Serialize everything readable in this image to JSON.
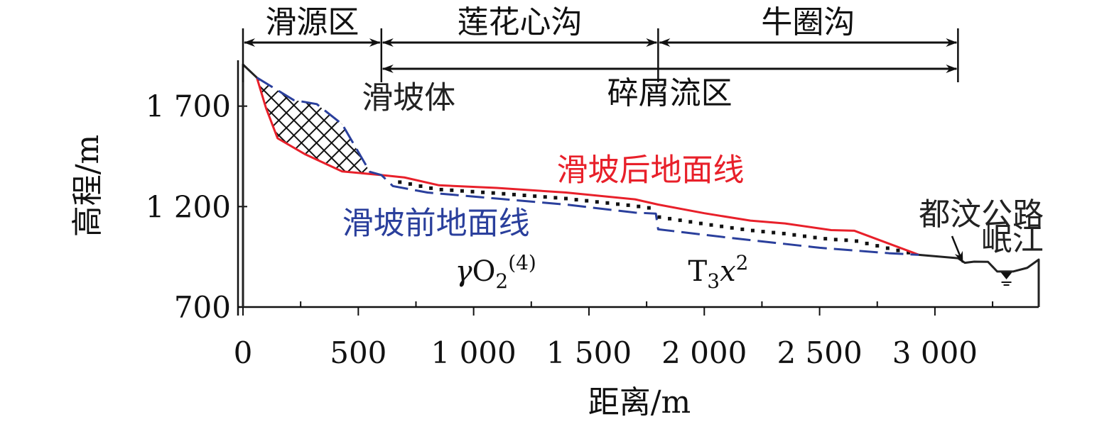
{
  "chart_data": {
    "type": "line",
    "xlabel": "距离/m",
    "ylabel": "高程/m",
    "xlim": [
      0,
      3450
    ],
    "ylim": [
      700,
      1900
    ],
    "x_ticks": [
      {
        "value": 0,
        "label": "0"
      },
      {
        "value": 500,
        "label": "500"
      },
      {
        "value": 1000,
        "label": "1 000"
      },
      {
        "value": 1500,
        "label": "1 500"
      },
      {
        "value": 2000,
        "label": "2 000"
      },
      {
        "value": 2500,
        "label": "2 500"
      },
      {
        "value": 3000,
        "label": "3 000"
      }
    ],
    "x_minor_ticks": [
      250,
      750,
      1250,
      1750,
      2250,
      2750,
      3250
    ],
    "y_ticks": [
      {
        "value": 700,
        "label": "700"
      },
      {
        "value": 1200,
        "label": "1 200"
      },
      {
        "value": 1700,
        "label": "1 700"
      }
    ],
    "zones": [
      {
        "label": "滑源区",
        "from": 0,
        "to": 600,
        "row": 1
      },
      {
        "label": "莲花心沟",
        "from": 600,
        "to": 1800,
        "row": 1
      },
      {
        "label": "牛圈沟",
        "from": 1800,
        "to": 3100,
        "row": 1
      },
      {
        "label": "碎屑流区",
        "from": 600,
        "to": 3100,
        "row": 2
      }
    ],
    "series": [
      {
        "name": "滑坡后地面线",
        "color": "#e8202a",
        "style": "solid",
        "x": [
          60,
          100,
          150,
          270,
          430,
          600,
          700,
          850,
          1100,
          1400,
          1700,
          1800,
          2000,
          2200,
          2350,
          2550,
          2650,
          2930
        ],
        "y": [
          1842,
          1690,
          1540,
          1460,
          1375,
          1357,
          1345,
          1306,
          1293,
          1270,
          1236,
          1210,
          1167,
          1130,
          1116,
          1083,
          1080,
          960
        ]
      },
      {
        "name": "滑坡前地面线",
        "color": "#2a3f9c",
        "style": "dashed",
        "x": [
          60,
          220,
          320,
          430,
          550,
          600,
          650,
          800,
          1100,
          1400,
          1700,
          1790,
          1800,
          2100,
          2500,
          2800,
          2930
        ],
        "y": [
          1842,
          1730,
          1710,
          1610,
          1373,
          1357,
          1302,
          1270,
          1240,
          1210,
          1170,
          1165,
          1087,
          1046,
          995,
          968,
          960
        ]
      },
      {
        "name": "",
        "color": "#222222",
        "style": "solid",
        "x": [
          0,
          0,
          60
        ],
        "y": [
          700,
          1907,
          1842
        ]
      },
      {
        "name": "",
        "color": "#222222",
        "style": "solid",
        "x": [
          2930,
          3100,
          3130,
          3170,
          3230,
          3270,
          3340,
          3400,
          3450,
          3450
        ],
        "y": [
          960,
          943,
          920,
          926,
          925,
          877,
          877,
          895,
          936,
          700
        ]
      }
    ],
    "annotations": [
      {
        "text": "滑坡体",
        "color": "#222222",
        "x": 515,
        "y": 1690
      },
      {
        "text": "滑坡后地面线",
        "color": "#e8202a",
        "x": 1360,
        "y": 1330
      },
      {
        "text": "滑坡前地面线",
        "color": "#2a3f9c",
        "x": 430,
        "y": 1065
      },
      {
        "text": "都汶公路",
        "color": "#222222",
        "x": 2930,
        "y": 1110
      },
      {
        "text": "岷江",
        "color": "#222222",
        "x": 3200,
        "y": 985
      }
    ],
    "formations": [
      {
        "base": "γO",
        "sub": "2",
        "sup": "(4)",
        "x": 920,
        "y": 830
      },
      {
        "base": "T",
        "sub": "3",
        "italic": "x",
        "sup": "2",
        "x": 1930,
        "y": 830
      }
    ]
  }
}
